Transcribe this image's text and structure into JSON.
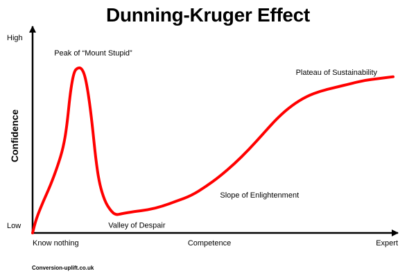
{
  "chart_data": {
    "type": "line",
    "title": "Dunning-Kruger Effect",
    "xlabel": "Competence",
    "ylabel": "Confidence",
    "x_tick_labels": {
      "low": "Know nothing",
      "high": "Expert"
    },
    "y_tick_labels": {
      "low": "Low",
      "high": "High"
    },
    "xlim": [
      0,
      100
    ],
    "ylim": [
      0,
      100
    ],
    "grid": false,
    "legend": "none",
    "series": [
      {
        "color": "#ff0000",
        "x": [
          0,
          1,
          3,
          5,
          7,
          8.5,
          9.5,
          10.5,
          11.5,
          12.5,
          13.5,
          14.5,
          15.5,
          16.5,
          17.5,
          18.5,
          20,
          21.5,
          23,
          25,
          28,
          32,
          36,
          40,
          44,
          48,
          52,
          56,
          60,
          64,
          68,
          72,
          76,
          80,
          84,
          88,
          92,
          96,
          100
        ],
        "y": [
          0,
          8,
          18,
          27,
          38,
          48,
          60,
          80,
          91,
          93,
          93,
          89,
          78,
          62,
          42,
          28,
          18,
          13,
          10,
          11,
          12,
          13,
          15,
          18,
          21,
          26,
          32,
          39,
          47,
          56,
          65,
          72,
          77,
          80,
          82,
          84,
          86,
          87,
          88
        ]
      }
    ],
    "annotations": [
      {
        "text": "Peak of “Mount Stupid”",
        "x": 6,
        "y": 100
      },
      {
        "text": "Valley of Despair",
        "x": 21,
        "y": 3
      },
      {
        "text": "Slope of Enlightenment",
        "x": 52,
        "y": 20
      },
      {
        "text": "Plateau of Sustainability",
        "x": 73,
        "y": 89
      }
    ]
  },
  "source": "Conversion-uplift.co.uk",
  "colors": {
    "curve": "#ff0000",
    "axis": "#000000"
  }
}
